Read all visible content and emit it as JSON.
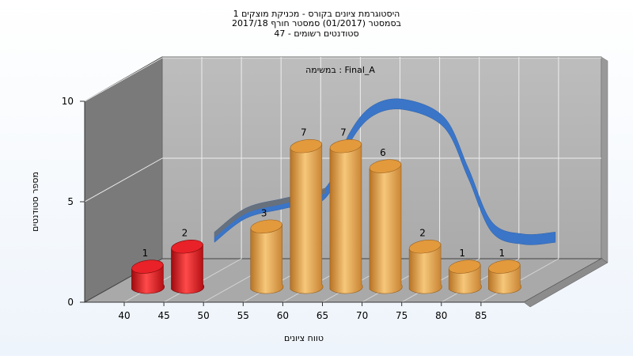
{
  "chart_data": {
    "type": "bar",
    "title_lines": [
      "היסטוגרמת ציונים בקורס - מכניקת מוצקים 1",
      "בסמסטר  (01/2017)  סמסטר חורף 2017/18",
      "סטודנטים רשומים - 47"
    ],
    "subtitle": "במשימה : Final_A",
    "xlabel": "טווח ציונים",
    "ylabel": "מספר סטודנטים",
    "x_ticks": [
      "40",
      "45",
      "50",
      "55",
      "60",
      "65",
      "70",
      "75",
      "80",
      "85"
    ],
    "y_ticks": [
      0,
      5,
      10
    ],
    "ylim": [
      0,
      10
    ],
    "bars": [
      {
        "x": 40,
        "value": 1,
        "label": "1",
        "color": "red"
      },
      {
        "x": 45,
        "value": 2,
        "label": "2",
        "color": "red"
      },
      {
        "x": 55,
        "value": 3,
        "label": "3",
        "color": "orange"
      },
      {
        "x": 60,
        "value": 7,
        "label": "7",
        "color": "orange"
      },
      {
        "x": 65,
        "value": 7,
        "label": "7",
        "color": "orange"
      },
      {
        "x": 70,
        "value": 6,
        "label": "6",
        "color": "orange"
      },
      {
        "x": 75,
        "value": 2,
        "label": "2",
        "color": "orange"
      },
      {
        "x": 80,
        "value": 1,
        "label": "1",
        "color": "orange"
      },
      {
        "x": 85,
        "value": 1,
        "label": "1",
        "color": "orange"
      }
    ],
    "curve": [
      {
        "x": 46,
        "y": 2.3
      },
      {
        "x": 50,
        "y": 3.5
      },
      {
        "x": 55,
        "y": 4.0
      },
      {
        "x": 60,
        "y": 4.5
      },
      {
        "x": 63,
        "y": 7.2
      },
      {
        "x": 66,
        "y": 8.6
      },
      {
        "x": 70,
        "y": 8.9
      },
      {
        "x": 75,
        "y": 8.0
      },
      {
        "x": 78,
        "y": 5.5
      },
      {
        "x": 81,
        "y": 2.8
      },
      {
        "x": 85,
        "y": 2.2
      },
      {
        "x": 89,
        "y": 2.3
      }
    ],
    "colors": {
      "red": "#e0141a",
      "orange": "#e9a445",
      "curve": "#3a75c8",
      "curve_dark": "#707070",
      "back_wall": "#b4b4b4",
      "side_wall": "#7a7a7a",
      "floor": "#a9a9a9"
    },
    "grid": true
  }
}
